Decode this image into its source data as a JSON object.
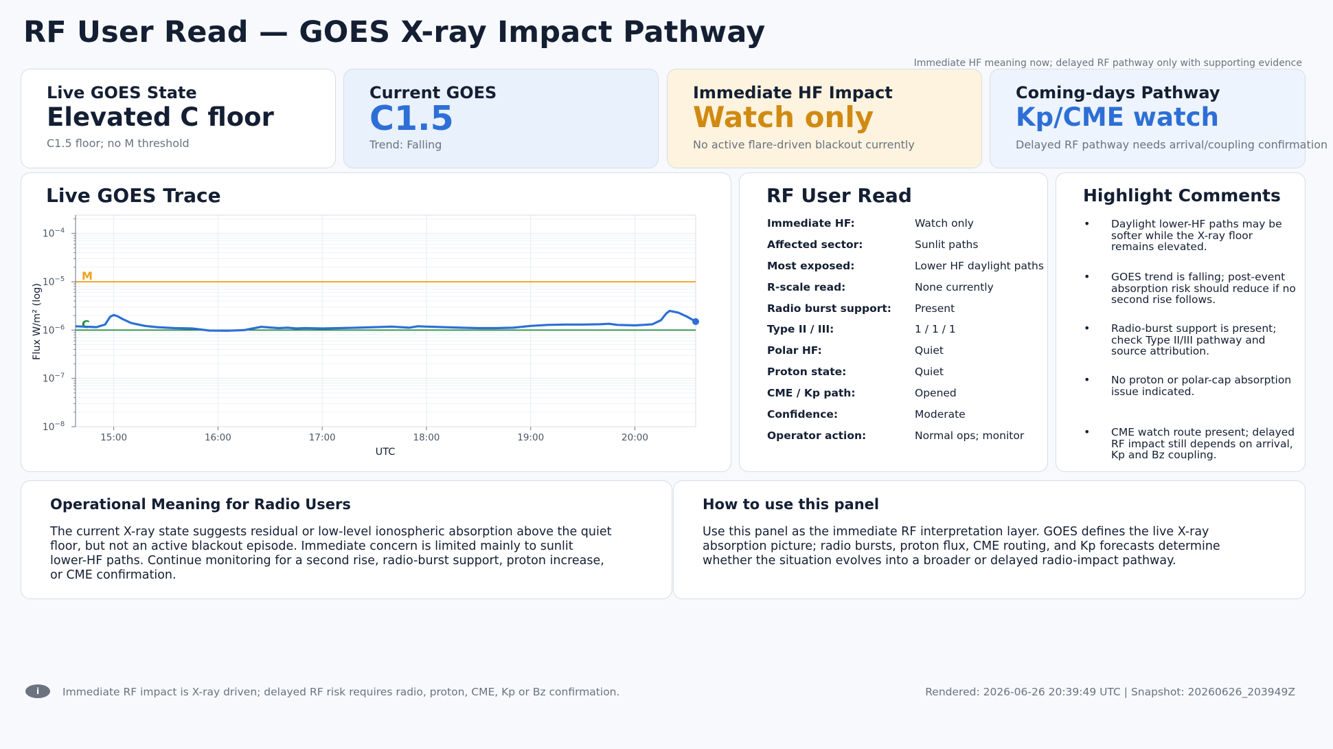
{
  "page": {
    "title": "RF User Read — GOES X-ray Impact Pathway",
    "subnote": "Immediate HF meaning now; delayed RF pathway only with supporting evidence"
  },
  "colors": {
    "blue": "#2d6fd6",
    "amber": "#d08a12",
    "m_line": "#f0a020",
    "c_line": "#1e8a3a",
    "trace": "#2d6fd6"
  },
  "stats": [
    {
      "label": "Live GOES State",
      "value": "Elevated C floor",
      "sub": "C1.5 floor; no M threshold"
    },
    {
      "label": "Current GOES",
      "value": "C1.5",
      "sub": "Trend: Falling"
    },
    {
      "label": "Immediate HF Impact",
      "value": "Watch only",
      "sub": "No active flare-driven blackout currently"
    },
    {
      "label": "Coming-days Pathway",
      "value": "Kp/CME watch",
      "sub": "Delayed RF pathway needs arrival/coupling confirmation"
    }
  ],
  "trace_panel": {
    "title": "Live GOES Trace"
  },
  "chart_data": {
    "type": "line",
    "title": "",
    "xlabel": "UTC",
    "ylabel": "Flux W/m² (log)",
    "yscale": "log",
    "ylim": [
      1e-08,
      0.0001
    ],
    "y_ticks": [
      {
        "base": "10",
        "exp": "−4",
        "value": 0.0001
      },
      {
        "base": "10",
        "exp": "−5",
        "value": 1e-05
      },
      {
        "base": "10",
        "exp": "−6",
        "value": 1e-06
      },
      {
        "base": "10",
        "exp": "−7",
        "value": 1e-07
      },
      {
        "base": "10",
        "exp": "−8",
        "value": 1e-08
      }
    ],
    "x_ticks": [
      "15:00",
      "16:00",
      "17:00",
      "18:00",
      "19:00",
      "20:00"
    ],
    "xlim": [
      "14:38",
      "20:35"
    ],
    "thresholds": [
      {
        "label": "M",
        "value": 1e-05
      },
      {
        "label": "C",
        "value": 1e-06
      }
    ],
    "grid": true,
    "series": [
      {
        "x": [
          "14:38",
          "14:50",
          "14:55",
          "14:58",
          "15:00",
          "15:02",
          "15:05",
          "15:10",
          "15:18",
          "15:25",
          "15:35",
          "15:45",
          "15:55",
          "16:05",
          "16:15",
          "16:20",
          "16:25",
          "16:30",
          "16:35",
          "16:40",
          "16:45",
          "16:50",
          "17:00",
          "17:10",
          "17:20",
          "17:30",
          "17:40",
          "17:50",
          "17:55",
          "18:00",
          "18:10",
          "18:20",
          "18:30",
          "18:40",
          "18:50",
          "19:00",
          "19:10",
          "19:20",
          "19:30",
          "19:40",
          "19:45",
          "19:50",
          "20:00",
          "20:05",
          "20:10",
          "20:15",
          "20:18",
          "20:20",
          "20:25",
          "20:30",
          "20:35"
        ],
        "y": [
          1.2e-06,
          1.15e-06,
          1.3e-06,
          1.9e-06,
          2.05e-06,
          1.95e-06,
          1.7e-06,
          1.4e-06,
          1.22e-06,
          1.15e-06,
          1.1e-06,
          1.08e-06,
          9.8e-07,
          9.7e-07,
          1e-06,
          1.08e-06,
          1.17e-06,
          1.13e-06,
          1.1e-06,
          1.12e-06,
          1.08e-06,
          1.1e-06,
          1.08e-06,
          1.1e-06,
          1.12e-06,
          1.15e-06,
          1.18e-06,
          1.12e-06,
          1.2e-06,
          1.18e-06,
          1.15e-06,
          1.12e-06,
          1.1e-06,
          1.1e-06,
          1.12e-06,
          1.22e-06,
          1.28e-06,
          1.3e-06,
          1.3e-06,
          1.32e-06,
          1.35e-06,
          1.28e-06,
          1.25e-06,
          1.28e-06,
          1.32e-06,
          1.6e-06,
          2.2e-06,
          2.5e-06,
          2.3e-06,
          1.9e-06,
          1.5e-06
        ]
      }
    ]
  },
  "rf_read": {
    "title": "RF User Read",
    "rows": [
      {
        "k": "Immediate HF:",
        "v": "Watch only"
      },
      {
        "k": "Affected sector:",
        "v": "Sunlit paths"
      },
      {
        "k": "Most exposed:",
        "v": "Lower HF daylight paths"
      },
      {
        "k": "R-scale read:",
        "v": "None currently"
      },
      {
        "k": "Radio burst support:",
        "v": "Present"
      },
      {
        "k": "Type II / III:",
        "v": "1 / 1 / 1"
      },
      {
        "k": "Polar HF:",
        "v": "Quiet"
      },
      {
        "k": "Proton state:",
        "v": "Quiet"
      },
      {
        "k": "CME / Kp path:",
        "v": "Opened"
      },
      {
        "k": "Confidence:",
        "v": "Moderate"
      },
      {
        "k": "Operator action:",
        "v": "Normal ops; monitor"
      }
    ]
  },
  "highlights": {
    "title": "Highlight Comments",
    "bullet": "•",
    "items": [
      "Daylight lower-HF paths may be softer while the X-ray floor remains elevated.",
      "GOES trend is falling; post-event absorption risk should reduce if no second rise follows.",
      "Radio-burst support is present; check Type II/III pathway and source attribution.",
      "No proton or polar-cap absorption issue indicated.",
      "CME watch route present; delayed RF impact still depends on arrival, Kp and Bz coupling."
    ]
  },
  "operational": {
    "title": "Operational Meaning for Radio Users",
    "lines": [
      "The current X-ray state suggests residual or low-level ionospheric absorption above the quiet",
      "floor, but not an active blackout episode. Immediate concern is limited mainly to sunlit",
      "lower-HF paths. Continue monitoring for a second rise, radio-burst support, proton increase,",
      "or CME confirmation."
    ]
  },
  "howto": {
    "title": "How to use this panel",
    "lines": [
      "Use this panel as the immediate RF interpretation layer. GOES defines the live X-ray",
      "absorption picture; radio bursts, proton flux, CME routing, and Kp forecasts determine",
      "whether the situation evolves into a broader or delayed radio-impact pathway."
    ]
  },
  "footer": {
    "icon": "i",
    "left": "Immediate RF impact is X-ray driven; delayed RF risk requires radio, proton, CME, Kp or Bz confirmation.",
    "right": "Rendered: 2026-06-26 20:39:49 UTC  |  Snapshot: 20260626_203949Z"
  }
}
